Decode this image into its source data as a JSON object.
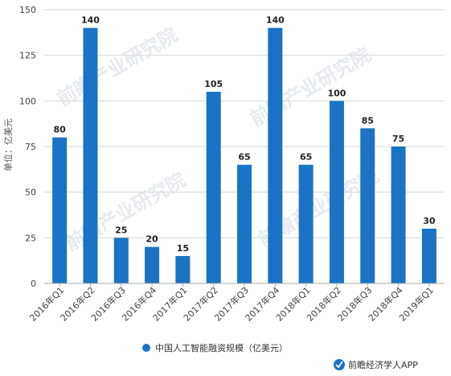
{
  "chart_data": {
    "type": "bar",
    "categories": [
      "2016年Q1",
      "2016年Q2",
      "2016年Q3",
      "2016年Q4",
      "2017年Q1",
      "2017年Q2",
      "2017年Q3",
      "2017年Q4",
      "2018年Q1",
      "2018年Q2",
      "2018年Q3",
      "2018年Q4",
      "2019年Q1"
    ],
    "series": [
      {
        "name": "中国人工智能融资规模（亿美元）",
        "values": [
          80,
          140,
          25,
          20,
          15,
          105,
          65,
          140,
          65,
          100,
          85,
          75,
          30
        ]
      }
    ],
    "ylabel": "单位：亿美元",
    "ylim": [
      0,
      150
    ],
    "yticks": [
      0,
      25,
      50,
      75,
      100,
      125,
      150
    ],
    "grid": true,
    "legend_position": "bottom-center",
    "data_labels": true
  },
  "colors": {
    "bar": "#1a73c4",
    "grid": "#d9d9d9",
    "axis": "#aaaaaa",
    "watermark": "#c8d3dc",
    "source_icon": "#1a73c4"
  },
  "watermark": {
    "text": "前瞻产业研究院"
  },
  "source": {
    "text": "前瞻经济学人APP",
    "icon": "source-badge-icon"
  }
}
